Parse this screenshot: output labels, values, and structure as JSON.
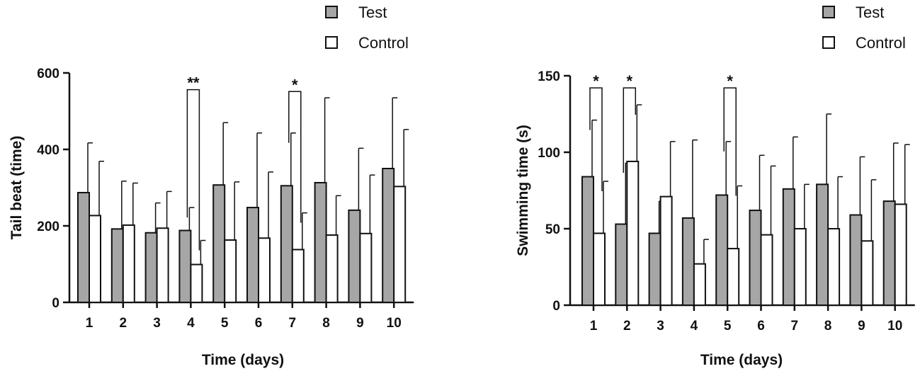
{
  "chart_data": [
    {
      "type": "bar",
      "categories": [
        "1",
        "2",
        "3",
        "4",
        "5",
        "6",
        "7",
        "8",
        "9",
        "10"
      ],
      "xlabel": "Time (days)",
      "ylabel": "Tail beat (time)",
      "ylim": [
        0,
        600
      ],
      "yticks": [
        0,
        200,
        400,
        600
      ],
      "legend": "top-right",
      "series": [
        {
          "name": "Test",
          "color": "#a6a6a6",
          "values": [
            287,
            192,
            182,
            188,
            307,
            248,
            305,
            313,
            241,
            350
          ],
          "errors": [
            130,
            125,
            78,
            60,
            163,
            195,
            138,
            222,
            162,
            185
          ]
        },
        {
          "name": "Control",
          "color": "#ffffff",
          "values": [
            227,
            202,
            194,
            99,
            163,
            168,
            138,
            176,
            180,
            303
          ],
          "errors": [
            142,
            110,
            96,
            63,
            152,
            173,
            96,
            103,
            153,
            149
          ]
        }
      ],
      "annotations": [
        {
          "category_index": 3,
          "label": "**",
          "y": 560
        },
        {
          "category_index": 6,
          "label": "*",
          "y": 555
        }
      ]
    },
    {
      "type": "bar",
      "categories": [
        "1",
        "2",
        "3",
        "4",
        "5",
        "6",
        "7",
        "8",
        "9",
        "10"
      ],
      "xlabel": "Time (days)",
      "ylabel": "Swimming time (s)",
      "ylim": [
        0,
        150
      ],
      "yticks": [
        0,
        50,
        100,
        150
      ],
      "legend": "top-right",
      "series": [
        {
          "name": "Test",
          "color": "#a6a6a6",
          "values": [
            84,
            53,
            47,
            57,
            72,
            62,
            76,
            79,
            59,
            68
          ],
          "errors": [
            37,
            40,
            21,
            51,
            35,
            36,
            34,
            46,
            38,
            38
          ]
        },
        {
          "name": "Control",
          "color": "#ffffff",
          "values": [
            47,
            94,
            71,
            27,
            37,
            46,
            50,
            50,
            42,
            66
          ],
          "errors": [
            34,
            37,
            36,
            16,
            41,
            45,
            29,
            34,
            40,
            39
          ]
        }
      ],
      "annotations": [
        {
          "category_index": 0,
          "label": "*",
          "y": 143
        },
        {
          "category_index": 1,
          "label": "*",
          "y": 143
        },
        {
          "category_index": 4,
          "label": "*",
          "y": 143
        }
      ]
    }
  ]
}
